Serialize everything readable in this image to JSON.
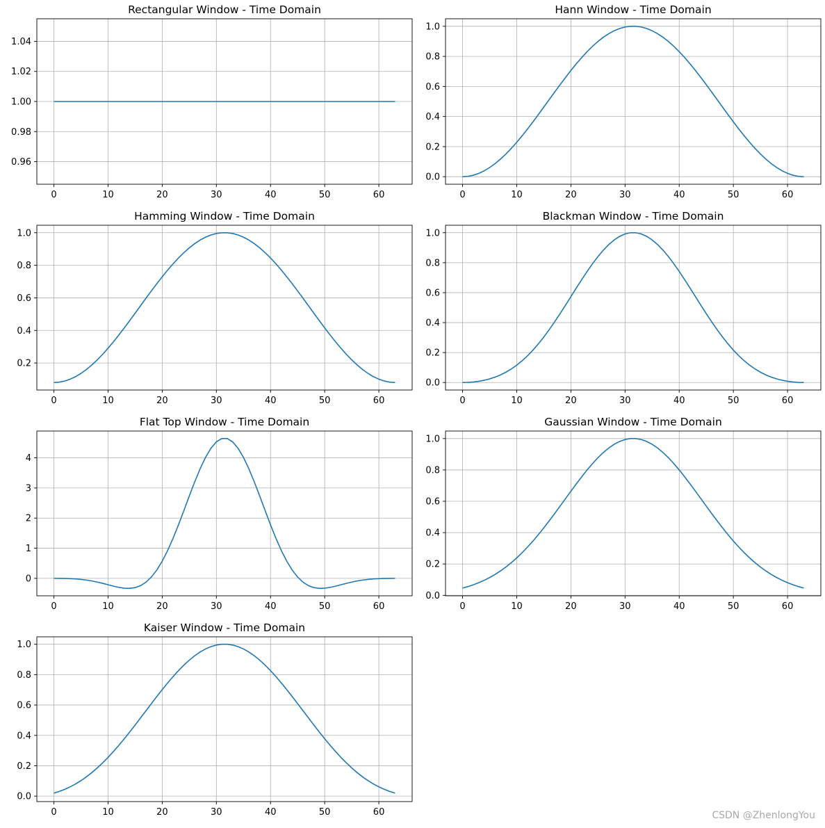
{
  "style": {
    "line_color": "#1f77b4",
    "grid_color": "#b0b0b0",
    "axes_color": "#000000"
  },
  "watermark": "CSDN @ZhenlongYou",
  "chart_data": [
    {
      "type": "line",
      "title": "Rectangular Window - Time Domain",
      "window": "rectangular",
      "n": 64,
      "x": [
        0,
        63
      ],
      "y": [
        1.0,
        1.0
      ],
      "xlim": [
        -3.15,
        66.15
      ],
      "ylim": [
        0.945,
        1.055
      ],
      "xticks": [
        0,
        10,
        20,
        30,
        40,
        50,
        60
      ],
      "yticks": [
        0.96,
        0.98,
        1.0,
        1.02,
        1.04
      ],
      "ytick_labels": [
        "0.96",
        "0.98",
        "1.00",
        "1.02",
        "1.04"
      ],
      "grid": true
    },
    {
      "type": "line",
      "title": "Hann Window - Time Domain",
      "window": "hann",
      "n": 64,
      "peak": 1.0,
      "xlim": [
        -3.15,
        66.15
      ],
      "ylim": [
        -0.05,
        1.05
      ],
      "xticks": [
        0,
        10,
        20,
        30,
        40,
        50,
        60
      ],
      "yticks": [
        0.0,
        0.2,
        0.4,
        0.6,
        0.8,
        1.0
      ],
      "ytick_labels": [
        "0.0",
        "0.2",
        "0.4",
        "0.6",
        "0.8",
        "1.0"
      ],
      "grid": true
    },
    {
      "type": "line",
      "title": "Hamming Window - Time Domain",
      "window": "hamming",
      "n": 64,
      "min": 0.08,
      "peak": 1.0,
      "xlim": [
        -3.15,
        66.15
      ],
      "ylim": [
        0.034,
        1.046
      ],
      "xticks": [
        0,
        10,
        20,
        30,
        40,
        50,
        60
      ],
      "yticks": [
        0.2,
        0.4,
        0.6,
        0.8,
        1.0
      ],
      "ytick_labels": [
        "0.2",
        "0.4",
        "0.6",
        "0.8",
        "1.0"
      ],
      "grid": true
    },
    {
      "type": "line",
      "title": "Blackman Window - Time Domain",
      "window": "blackman",
      "n": 64,
      "peak": 1.0,
      "xlim": [
        -3.15,
        66.15
      ],
      "ylim": [
        -0.05,
        1.05
      ],
      "xticks": [
        0,
        10,
        20,
        30,
        40,
        50,
        60
      ],
      "yticks": [
        0.0,
        0.2,
        0.4,
        0.6,
        0.8,
        1.0
      ],
      "ytick_labels": [
        "0.0",
        "0.2",
        "0.4",
        "0.6",
        "0.8",
        "1.0"
      ],
      "grid": true
    },
    {
      "type": "line",
      "title": "Flat Top Window - Time Domain",
      "window": "flattop",
      "n": 64,
      "peak": 4.64,
      "min": -0.33,
      "xlim": [
        -3.15,
        66.15
      ],
      "ylim": [
        -0.58,
        4.89
      ],
      "xticks": [
        0,
        10,
        20,
        30,
        40,
        50,
        60
      ],
      "yticks": [
        0,
        1,
        2,
        3,
        4
      ],
      "ytick_labels": [
        "0",
        "1",
        "2",
        "3",
        "4"
      ],
      "grid": true
    },
    {
      "type": "line",
      "title": "Gaussian Window - Time Domain",
      "window": "gaussian",
      "n": 64,
      "std": 12.7,
      "peak": 1.0,
      "xlim": [
        -3.15,
        66.15
      ],
      "ylim": [
        -0.003,
        1.048
      ],
      "xticks": [
        0,
        10,
        20,
        30,
        40,
        50,
        60
      ],
      "yticks": [
        0.0,
        0.2,
        0.4,
        0.6,
        0.8,
        1.0
      ],
      "ytick_labels": [
        "0.0",
        "0.2",
        "0.4",
        "0.6",
        "0.8",
        "1.0"
      ],
      "grid": true
    },
    {
      "type": "line",
      "title": "Kaiser Window - Time Domain",
      "window": "kaiser",
      "n": 64,
      "beta": 5.7,
      "peak": 1.0,
      "xlim": [
        -3.15,
        66.15
      ],
      "ylim": [
        -0.036,
        1.049
      ],
      "xticks": [
        0,
        10,
        20,
        30,
        40,
        50,
        60
      ],
      "yticks": [
        0.0,
        0.2,
        0.4,
        0.6,
        0.8,
        1.0
      ],
      "ytick_labels": [
        "0.0",
        "0.2",
        "0.4",
        "0.6",
        "0.8",
        "1.0"
      ],
      "grid": true
    }
  ]
}
